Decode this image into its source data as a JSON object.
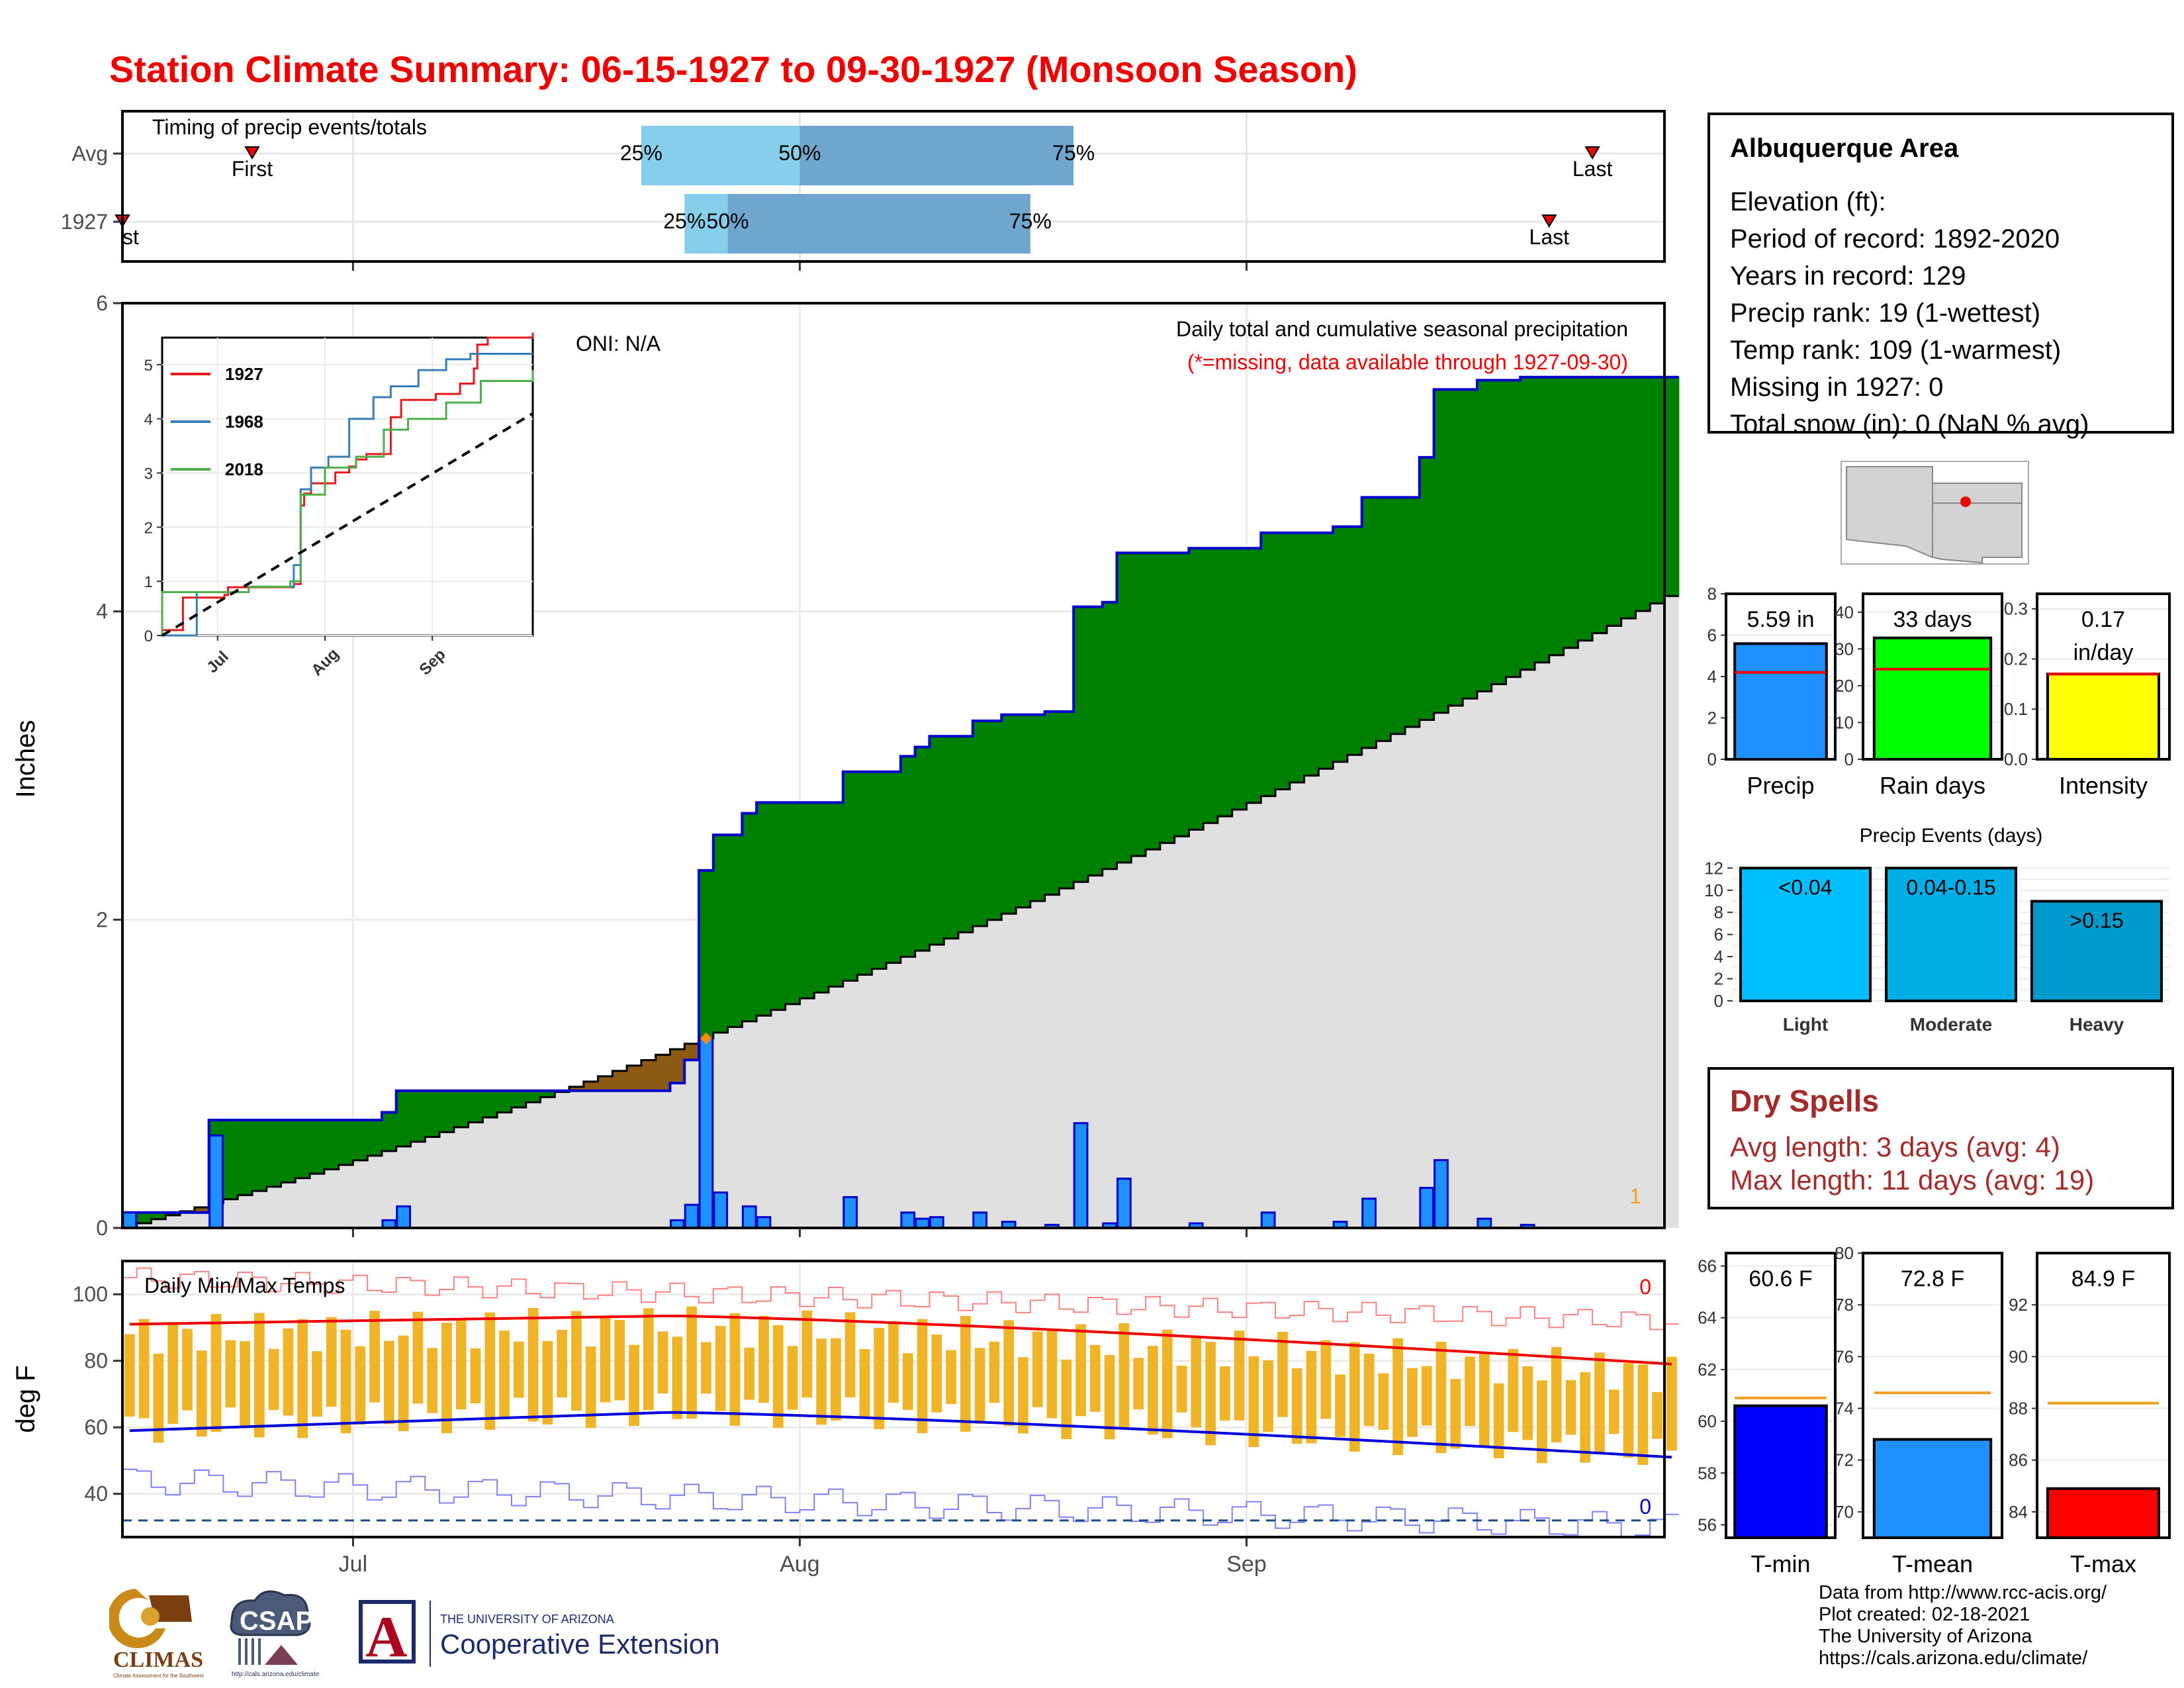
{
  "title": "Station Climate Summary: 06-15-1927 to 09-30-1927 (Monsoon Season)",
  "colors": {
    "title": "#ee0000",
    "above_normal": "#008000",
    "below_normal": "#8b5a14",
    "normal_area": "#e0e0e0",
    "daily_bar": "#1e90ff",
    "bar_outline": "#0000cc",
    "temp_bar": "#f0b428",
    "tmax_line": "#ee0000",
    "tmin_line": "#0000dd",
    "timing_light": "#87ceeb",
    "timing_dark": "#6fa6cf"
  },
  "icons": {
    "marker": "red-triangle-marker-icon",
    "map": "southwest-us-map-icon"
  },
  "station": {
    "name": "Albuquerque Area",
    "lines": [
      "Elevation (ft):",
      "Period of record: 1892-2020",
      "Years in record: 129",
      "Precip rank: 19 (1-wettest)",
      "Temp rank: 109 (1-warmest)",
      "Missing in 1927: 0",
      "Total snow (in): 0 (NaN % avg)"
    ]
  },
  "dry_spells": {
    "title": "Dry Spells",
    "avg_length": "Avg length: 3 days (avg: 4)",
    "max_length": "Max length: 11 days (avg: 19)"
  },
  "credits": [
    "Data from http://www.rcc-acis.org/",
    "Plot created: 02-18-2021",
    "The University of Arizona",
    "https://cals.arizona.edu/climate/"
  ],
  "logos": {
    "climas": "CLIMAS",
    "climas_sub": "Climate Assessment for the Southwest",
    "csap": "CSAP",
    "csap_url": "http://cals.arizona.edu/climate",
    "ua_letter": "A",
    "ua_line1": "THE UNIVERSITY OF ARIZONA",
    "ua_line2": "Cooperative Extension"
  },
  "chart_data": [
    {
      "id": "timing",
      "type": "bar",
      "title": "Timing of precip events/totals",
      "categories": [
        "Avg",
        "1927"
      ],
      "x_range": [
        "1927-06-15",
        "1927-09-30"
      ],
      "rows": [
        {
          "label": "Avg",
          "first": "1927-06-24",
          "last": "1927-09-25",
          "p25": "1927-07-21",
          "p50": "1927-08-01",
          "p75": "1927-08-20"
        },
        {
          "label": "1927",
          "first": "1927-06-15",
          "last": "1927-09-22",
          "p25": "1927-07-24",
          "p50": "1927-07-27",
          "p75": "1927-08-17"
        }
      ],
      "labels": {
        "first": "First",
        "last": "Last",
        "p25": "25%",
        "p50": "50%",
        "p75": "75%"
      },
      "first_label_1927": "st"
    },
    {
      "id": "precip_main",
      "type": "area",
      "ylabel": "Inches",
      "ylim": [
        0,
        6
      ],
      "yticks": [
        0,
        2,
        4,
        6
      ],
      "x_range": [
        "1927-06-15",
        "1927-09-30"
      ],
      "x_ticks": [
        {
          "date": "1927-07-01",
          "label": "Jul"
        },
        {
          "date": "1927-08-01",
          "label": "Aug"
        },
        {
          "date": "1927-09-01",
          "label": "Sep"
        }
      ],
      "annotation_right": "Daily total and cumulative seasonal precipitation",
      "annotation_missing": "(*=missing, data available through 1927-09-30)",
      "oni": "ONI: N/A",
      "corner_label": "1",
      "daily_precip": [
        {
          "date": "1927-06-15",
          "value": 0.1
        },
        {
          "date": "1927-06-21",
          "value": 0.6
        },
        {
          "date": "1927-07-03",
          "value": 0.05
        },
        {
          "date": "1927-07-04",
          "value": 0.14
        },
        {
          "date": "1927-07-23",
          "value": 0.05
        },
        {
          "date": "1927-07-24",
          "value": 0.15
        },
        {
          "date": "1927-07-25",
          "value": 1.23
        },
        {
          "date": "1927-07-26",
          "value": 0.23
        },
        {
          "date": "1927-07-28",
          "value": 0.14
        },
        {
          "date": "1927-07-29",
          "value": 0.07
        },
        {
          "date": "1927-08-04",
          "value": 0.2
        },
        {
          "date": "1927-08-08",
          "value": 0.1
        },
        {
          "date": "1927-08-09",
          "value": 0.06
        },
        {
          "date": "1927-08-10",
          "value": 0.07
        },
        {
          "date": "1927-08-13",
          "value": 0.1
        },
        {
          "date": "1927-08-15",
          "value": 0.04
        },
        {
          "date": "1927-08-18",
          "value": 0.02
        },
        {
          "date": "1927-08-20",
          "value": 0.68
        },
        {
          "date": "1927-08-22",
          "value": 0.03
        },
        {
          "date": "1927-08-23",
          "value": 0.32
        },
        {
          "date": "1927-08-28",
          "value": 0.03
        },
        {
          "date": "1927-09-02",
          "value": 0.1
        },
        {
          "date": "1927-09-07",
          "value": 0.04
        },
        {
          "date": "1927-09-09",
          "value": 0.19
        },
        {
          "date": "1927-09-13",
          "value": 0.26
        },
        {
          "date": "1927-09-14",
          "value": 0.44
        },
        {
          "date": "1927-09-17",
          "value": 0.06
        },
        {
          "date": "1927-09-20",
          "value": 0.02
        }
      ],
      "normal_cumulative_end": 4.1,
      "missing_marker": {
        "date": "1927-07-25",
        "value": 1.23
      }
    },
    {
      "id": "inset",
      "type": "line",
      "ylim": [
        0,
        5.5
      ],
      "yticks": [
        0,
        1,
        2,
        3,
        4,
        5
      ],
      "x_ticks": [
        "Jul",
        "Aug",
        "Sep"
      ],
      "series": [
        {
          "name": "1927",
          "color": "#e41a1c",
          "x": [
            "1927-06-15",
            "1927-06-17",
            "1927-06-21",
            "1927-07-03",
            "1927-07-04",
            "1927-07-23",
            "1927-07-25",
            "1927-07-26",
            "1927-07-28",
            "1927-08-04",
            "1927-08-08",
            "1927-08-10",
            "1927-08-13",
            "1927-08-20",
            "1927-08-23",
            "1927-09-02",
            "1927-09-09",
            "1927-09-13",
            "1927-09-14",
            "1927-09-17",
            "1927-09-30"
          ],
          "y": [
            0.1,
            0.1,
            0.7,
            0.75,
            0.89,
            0.95,
            2.4,
            2.62,
            2.81,
            3.01,
            3.12,
            3.25,
            3.35,
            4.03,
            4.35,
            4.46,
            4.65,
            4.93,
            5.37,
            5.5,
            5.59
          ]
        },
        {
          "name": "1968",
          "color": "#377eb8",
          "x": [
            "1927-06-15",
            "1927-06-25",
            "1927-06-25",
            "1927-07-10",
            "1927-07-23",
            "1927-07-25",
            "1927-07-28",
            "1927-08-02",
            "1927-08-08",
            "1927-08-15",
            "1927-08-20",
            "1927-08-28",
            "1927-09-05",
            "1927-09-12",
            "1927-09-30"
          ],
          "y": [
            0,
            0,
            0.8,
            0.9,
            1.3,
            2.7,
            3.1,
            3.3,
            4.0,
            4.4,
            4.6,
            4.9,
            5.1,
            5.2,
            5.2
          ]
        },
        {
          "name": "2018",
          "color": "#4daf4a",
          "x": [
            "1927-06-15",
            "1927-06-15",
            "1927-07-10",
            "1927-07-22",
            "1927-07-25",
            "1927-08-01",
            "1927-08-10",
            "1927-08-18",
            "1927-08-25",
            "1927-09-05",
            "1927-09-15",
            "1927-09-30"
          ],
          "y": [
            0,
            0.8,
            0.9,
            1.0,
            2.6,
            3.1,
            3.3,
            3.8,
            4.0,
            4.3,
            4.7,
            4.9
          ]
        },
        {
          "name": "",
          "color": "#000000",
          "dashed": true,
          "x": [
            "1927-06-15",
            "1927-09-30"
          ],
          "y": [
            0,
            4.1
          ]
        }
      ]
    },
    {
      "id": "precip_total",
      "type": "bar",
      "ylim": [
        0,
        8
      ],
      "yticks": [
        0,
        2,
        4,
        6,
        8
      ],
      "value": 5.59,
      "avg": 4.2,
      "label": "5.59 in",
      "xlabel": "Precip",
      "color": "#1e90ff"
    },
    {
      "id": "rain_days",
      "type": "bar",
      "ylim": [
        0,
        45
      ],
      "yticks": [
        0,
        10,
        20,
        30,
        40
      ],
      "value": 33,
      "avg": 24.5,
      "label": "33 days",
      "xlabel": "Rain days",
      "color": "#00ff00"
    },
    {
      "id": "intensity",
      "type": "bar",
      "ylim": [
        0,
        0.33
      ],
      "yticks": [
        0.0,
        0.1,
        0.2,
        0.3
      ],
      "value": 0.17,
      "avg": 0.17,
      "label": "0.17",
      "label2": "in/day",
      "xlabel": "Intensity",
      "color": "#ffff00"
    },
    {
      "id": "precip_events",
      "type": "bar",
      "title": "Precip Events (days)",
      "ylim": [
        0,
        12.5
      ],
      "yticks": [
        0,
        2,
        4,
        6,
        8,
        10,
        12
      ],
      "categories": [
        "Light",
        "Moderate",
        "Heavy"
      ],
      "bar_labels": [
        "<0.04",
        "0.04-0.15",
        ">0.15"
      ],
      "values": [
        12,
        12,
        9
      ],
      "colors": [
        "#00bfff",
        "#00aee6",
        "#009acd"
      ]
    },
    {
      "id": "temps",
      "type": "line",
      "title": "Daily Min/Max Temps",
      "ylabel": "deg F",
      "ylim": [
        27,
        110
      ],
      "yticks": [
        40,
        60,
        80,
        100
      ],
      "x_range": [
        "1927-06-15",
        "1927-09-30"
      ],
      "x_ticks": [
        {
          "date": "1927-07-01",
          "label": "Jul"
        },
        {
          "date": "1927-08-01",
          "label": "Aug"
        },
        {
          "date": "1927-09-01",
          "label": "Sep"
        }
      ],
      "freeze_line": 32,
      "count_hot": "0",
      "count_cold": "0",
      "normal_max_start": 91,
      "normal_max_peak": 93.5,
      "normal_max_end": 79,
      "normal_min_start": 59,
      "normal_min_peak": 64.5,
      "normal_min_end": 51,
      "tmax_typical": 88,
      "tmin_typical": 60,
      "record_high_start": 105,
      "record_high_end": 92,
      "record_low_start": 44,
      "record_low_end": 30
    },
    {
      "id": "tmin",
      "type": "bar",
      "ylim": [
        55.5,
        66.5
      ],
      "yticks": [
        56,
        58,
        60,
        62,
        64,
        66
      ],
      "value": 60.6,
      "avg": 60.9,
      "label": "60.6 F",
      "xlabel": "T-min",
      "color": "#0000ff"
    },
    {
      "id": "tmean",
      "type": "bar",
      "ylim": [
        69,
        80
      ],
      "yticks": [
        70,
        72,
        74,
        76,
        78,
        80
      ],
      "value": 72.8,
      "avg": 74.6,
      "label": "72.8 F",
      "xlabel": "T-mean",
      "color": "#1e90ff"
    },
    {
      "id": "tmax",
      "type": "bar",
      "ylim": [
        83,
        94
      ],
      "yticks": [
        84,
        86,
        88,
        90,
        92
      ],
      "value": 84.9,
      "avg": 88.2,
      "label": "84.9 F",
      "xlabel": "T-max",
      "color": "#ff0000"
    }
  ]
}
